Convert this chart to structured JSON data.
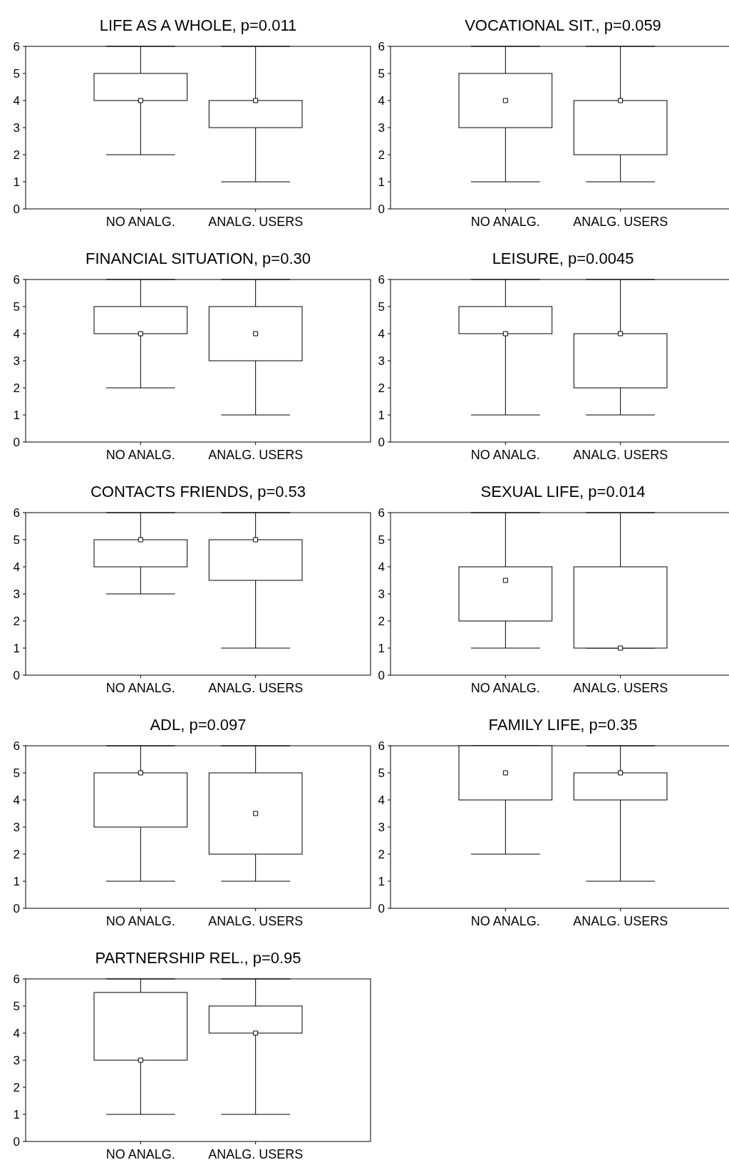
{
  "chart_data": [
    {
      "type": "box",
      "title": "LIFE AS A WHOLE, p=0.011",
      "categories": [
        "NO ANALG.",
        "ANALG. USERS"
      ],
      "ylim": [
        0,
        6
      ],
      "yticks": [
        0,
        1,
        2,
        3,
        4,
        5,
        6
      ],
      "boxes": [
        {
          "low": 2,
          "q1": 4,
          "median": 4,
          "q3": 5,
          "high": 6
        },
        {
          "low": 1,
          "q1": 3,
          "median": 4,
          "q3": 4,
          "high": 6
        }
      ]
    },
    {
      "type": "box",
      "title": "VOCATIONAL SIT., p=0.059",
      "categories": [
        "NO ANALG.",
        "ANALG. USERS"
      ],
      "ylim": [
        0,
        6
      ],
      "yticks": [
        0,
        1,
        2,
        3,
        4,
        5,
        6
      ],
      "boxes": [
        {
          "low": 1,
          "q1": 3,
          "median": 4,
          "q3": 5,
          "high": 6
        },
        {
          "low": 1,
          "q1": 2,
          "median": 4,
          "q3": 4,
          "high": 6
        }
      ]
    },
    {
      "type": "box",
      "title": "FINANCIAL SITUATION, p=0.30",
      "categories": [
        "NO ANALG.",
        "ANALG. USERS"
      ],
      "ylim": [
        0,
        6
      ],
      "yticks": [
        0,
        1,
        2,
        3,
        4,
        5,
        6
      ],
      "boxes": [
        {
          "low": 2,
          "q1": 4,
          "median": 4,
          "q3": 5,
          "high": 6
        },
        {
          "low": 1,
          "q1": 3,
          "median": 4,
          "q3": 5,
          "high": 6
        }
      ]
    },
    {
      "type": "box",
      "title": "LEISURE, p=0.0045",
      "categories": [
        "NO ANALG.",
        "ANALG. USERS"
      ],
      "ylim": [
        0,
        6
      ],
      "yticks": [
        0,
        1,
        2,
        3,
        4,
        5,
        6
      ],
      "boxes": [
        {
          "low": 1,
          "q1": 4,
          "median": 4,
          "q3": 5,
          "high": 6
        },
        {
          "low": 1,
          "q1": 2,
          "median": 4,
          "q3": 4,
          "high": 6
        }
      ]
    },
    {
      "type": "box",
      "title": "CONTACTS FRIENDS, p=0.53",
      "categories": [
        "NO ANALG.",
        "ANALG. USERS"
      ],
      "ylim": [
        0,
        6
      ],
      "yticks": [
        0,
        1,
        2,
        3,
        4,
        5,
        6
      ],
      "boxes": [
        {
          "low": 3,
          "q1": 4,
          "median": 5,
          "q3": 5,
          "high": 6
        },
        {
          "low": 1,
          "q1": 3.5,
          "median": 5,
          "q3": 5,
          "high": 6
        }
      ]
    },
    {
      "type": "box",
      "title": "SEXUAL LIFE, p=0.014",
      "categories": [
        "NO ANALG.",
        "ANALG. USERS"
      ],
      "ylim": [
        0,
        6
      ],
      "yticks": [
        0,
        1,
        2,
        3,
        4,
        5,
        6
      ],
      "boxes": [
        {
          "low": 1,
          "q1": 2,
          "median": 3.5,
          "q3": 4,
          "high": 6
        },
        {
          "low": 1,
          "q1": 1,
          "median": 1,
          "q3": 4,
          "high": 6
        }
      ]
    },
    {
      "type": "box",
      "title": "ADL, p=0.097",
      "categories": [
        "NO ANALG.",
        "ANALG. USERS"
      ],
      "ylim": [
        0,
        6
      ],
      "yticks": [
        0,
        1,
        2,
        3,
        4,
        5,
        6
      ],
      "boxes": [
        {
          "low": 1,
          "q1": 3,
          "median": 5,
          "q3": 5,
          "high": 6
        },
        {
          "low": 1,
          "q1": 2,
          "median": 3.5,
          "q3": 5,
          "high": 6
        }
      ]
    },
    {
      "type": "box",
      "title": "FAMILY LIFE, p=0.35",
      "categories": [
        "NO ANALG.",
        "ANALG. USERS"
      ],
      "ylim": [
        0,
        6
      ],
      "yticks": [
        0,
        1,
        2,
        3,
        4,
        5,
        6
      ],
      "boxes": [
        {
          "low": 2,
          "q1": 4,
          "median": 5,
          "q3": 6,
          "high": 6
        },
        {
          "low": 1,
          "q1": 4,
          "median": 5,
          "q3": 5,
          "high": 6
        }
      ]
    },
    {
      "type": "box",
      "title": "PARTNERSHIP REL., p=0.95",
      "categories": [
        "NO ANALG.",
        "ANALG. USERS"
      ],
      "ylim": [
        0,
        6
      ],
      "yticks": [
        0,
        1,
        2,
        3,
        4,
        5,
        6
      ],
      "boxes": [
        {
          "low": 1,
          "q1": 3,
          "median": 3,
          "q3": 5.5,
          "high": 6
        },
        {
          "low": 1,
          "q1": 4,
          "median": 4,
          "q3": 5,
          "high": 6
        }
      ]
    }
  ]
}
